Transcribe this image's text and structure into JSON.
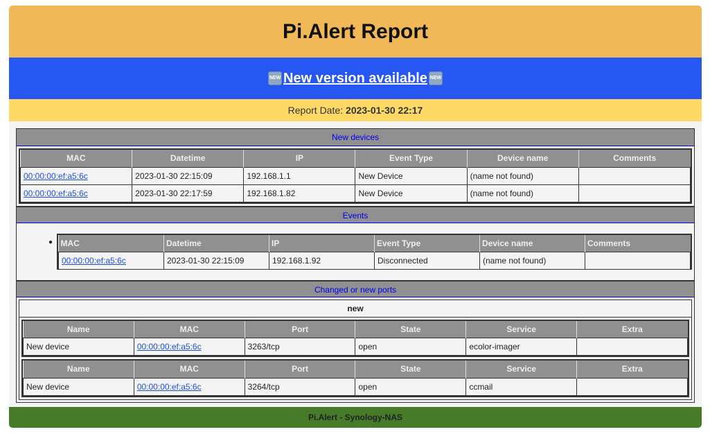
{
  "header": {
    "title": "Pi.Alert Report"
  },
  "banner": {
    "new_badge": "NEW",
    "text": " New version available "
  },
  "report": {
    "label": "Report Date:",
    "value": "2023-01-30 22:17"
  },
  "new_devices": {
    "title": "New devices",
    "columns": [
      "MAC",
      "Datetime",
      "IP",
      "Event Type",
      "Device name",
      "Comments"
    ],
    "rows": [
      [
        "00:00:00:ef:a5:6c",
        "2023-01-30 22:15:09",
        "192.168.1.1",
        "New Device",
        "(name not found)",
        ""
      ],
      [
        "00:00:00:ef:a5:6c",
        "2023-01-30 22:17:59",
        "192.168.1.82",
        "New Device",
        "(name not found)",
        ""
      ]
    ]
  },
  "events": {
    "title": "Events",
    "columns": [
      "MAC",
      "Datetime",
      "IP",
      "Event Type",
      "Device name",
      "Comments"
    ],
    "rows": [
      [
        "00:00:00:ef:a5:6c",
        "2023-01-30 22:15:09",
        "192.168.1.92",
        "Disconnected",
        "(name not found)",
        ""
      ]
    ]
  },
  "ports": {
    "title": "Changed or new ports",
    "group": "new",
    "columns": [
      "Name",
      "MAC",
      "Port",
      "State",
      "Service",
      "Extra"
    ],
    "tables": [
      [
        [
          "New device",
          "00:00:00:ef:a5:6c",
          "3263/tcp",
          "open",
          "ecolor-imager",
          ""
        ]
      ],
      [
        [
          "New device",
          "00:00:00:ef:a5:6c",
          "3264/tcp",
          "open",
          "ccmail",
          ""
        ]
      ]
    ]
  },
  "footer": {
    "text": "Pi.Alert - Synology-NAS"
  }
}
